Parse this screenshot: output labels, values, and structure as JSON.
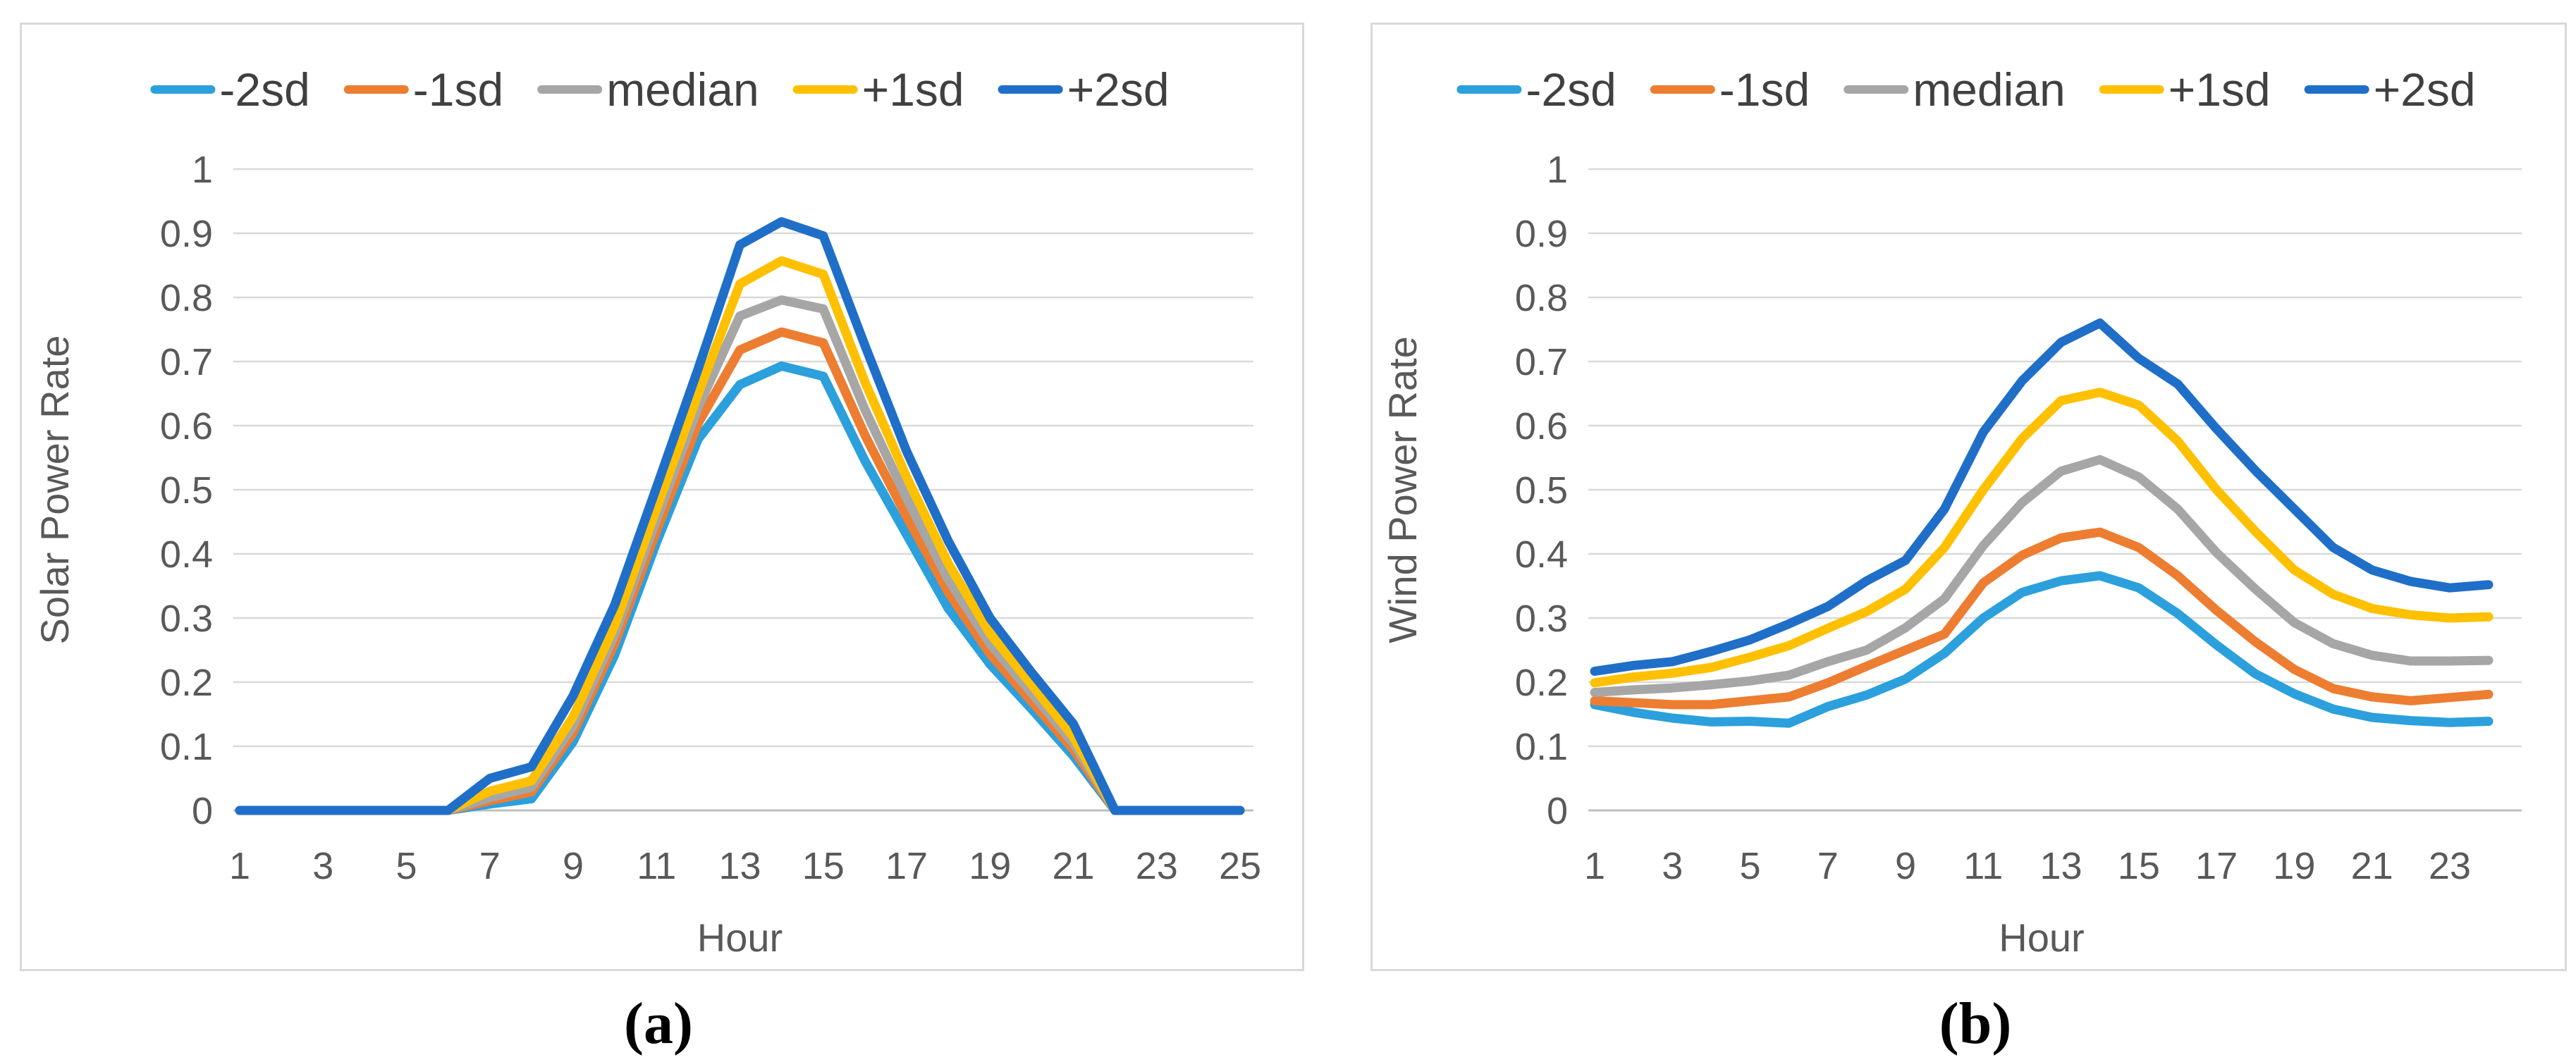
{
  "captions": [
    "(a)",
    "(b)"
  ],
  "style": {
    "grid_color": "#D9D9D9",
    "axis_line_color": "#BFBFBF",
    "tick_text_color": "#595959",
    "axis_title_color": "#595959",
    "legend_text_color": "#404040",
    "panel_border_color": "#D9D9D9",
    "background": "#FFFFFF"
  },
  "chart_data": [
    {
      "type": "line",
      "title": "",
      "xlabel": "Hour",
      "ylabel": "Solar Power Rate",
      "ylim": [
        0,
        1
      ],
      "y_tick_step": 0.1,
      "grid": true,
      "legend_position": "top",
      "y_tick_labels": [
        "0",
        "0.1",
        "0.2",
        "0.3",
        "0.4",
        "0.5",
        "0.6",
        "0.7",
        "0.8",
        "0.9",
        "1"
      ],
      "x": [
        1,
        2,
        3,
        4,
        5,
        6,
        7,
        8,
        9,
        10,
        11,
        12,
        13,
        14,
        15,
        16,
        17,
        18,
        19,
        20,
        21,
        22,
        23,
        24,
        25
      ],
      "x_tick_labels": [
        1,
        3,
        5,
        7,
        9,
        11,
        13,
        15,
        17,
        19,
        21,
        23,
        25
      ],
      "series": [
        {
          "name": "-2sd",
          "color": "#2BA0DC",
          "values": [
            0,
            0,
            0,
            0,
            0,
            0,
            0.01,
            0.018,
            0.107,
            0.243,
            0.418,
            0.579,
            0.664,
            0.693,
            0.677,
            0.545,
            0.43,
            0.315,
            0.228,
            0.158,
            0.085,
            0,
            0,
            0,
            0
          ]
        },
        {
          "name": "-1sd",
          "color": "#ED7D31",
          "values": [
            0,
            0,
            0,
            0,
            0,
            0,
            0.015,
            0.029,
            0.121,
            0.261,
            0.436,
            0.604,
            0.718,
            0.746,
            0.729,
            0.585,
            0.458,
            0.34,
            0.244,
            0.17,
            0.095,
            0,
            0,
            0,
            0
          ]
        },
        {
          "name": "median",
          "color": "#A6A6A6",
          "values": [
            0,
            0,
            0,
            0,
            0,
            0,
            0.02,
            0.036,
            0.132,
            0.275,
            0.454,
            0.629,
            0.771,
            0.796,
            0.782,
            0.625,
            0.487,
            0.36,
            0.26,
            0.183,
            0.105,
            0,
            0,
            0,
            0
          ]
        },
        {
          "name": "+1sd",
          "color": "#FFC000",
          "values": [
            0,
            0,
            0,
            0,
            0,
            0,
            0.03,
            0.046,
            0.146,
            0.289,
            0.471,
            0.65,
            0.821,
            0.857,
            0.836,
            0.668,
            0.52,
            0.385,
            0.276,
            0.196,
            0.115,
            0,
            0,
            0,
            0
          ]
        },
        {
          "name": "+2sd",
          "color": "#1F6FC8",
          "values": [
            0,
            0,
            0,
            0,
            0,
            0,
            0.05,
            0.068,
            0.179,
            0.321,
            0.504,
            0.689,
            0.882,
            0.918,
            0.896,
            0.725,
            0.56,
            0.42,
            0.3,
            0.215,
            0.135,
            0,
            0,
            0,
            0
          ]
        }
      ]
    },
    {
      "type": "line",
      "title": "",
      "xlabel": "Hour",
      "ylabel": "Wind Power Rate",
      "ylim": [
        0,
        1
      ],
      "y_tick_step": 0.1,
      "grid": true,
      "legend_position": "top",
      "y_tick_labels": [
        "0",
        "0.1",
        "0.2",
        "0.3",
        "0.4",
        "0.5",
        "0.6",
        "0.7",
        "0.8",
        "0.9",
        "1"
      ],
      "x": [
        1,
        2,
        3,
        4,
        5,
        6,
        7,
        8,
        9,
        10,
        11,
        12,
        13,
        14,
        15,
        16,
        17,
        18,
        19,
        20,
        21,
        22,
        23,
        24
      ],
      "x_tick_labels": [
        1,
        3,
        5,
        7,
        9,
        11,
        13,
        15,
        17,
        19,
        21,
        23
      ],
      "series": [
        {
          "name": "-2sd",
          "color": "#2BA0DC",
          "values": [
            0.165,
            0.153,
            0.144,
            0.138,
            0.139,
            0.136,
            0.162,
            0.18,
            0.205,
            0.245,
            0.3,
            0.34,
            0.358,
            0.366,
            0.347,
            0.307,
            0.258,
            0.213,
            0.182,
            0.158,
            0.145,
            0.14,
            0.137,
            0.139
          ]
        },
        {
          "name": "-1sd",
          "color": "#ED7D31",
          "values": [
            0.171,
            0.168,
            0.165,
            0.165,
            0.171,
            0.177,
            0.199,
            0.225,
            0.25,
            0.275,
            0.355,
            0.398,
            0.425,
            0.434,
            0.41,
            0.366,
            0.312,
            0.263,
            0.22,
            0.19,
            0.177,
            0.171,
            0.176,
            0.181
          ]
        },
        {
          "name": "median",
          "color": "#A6A6A6",
          "values": [
            0.184,
            0.188,
            0.191,
            0.196,
            0.202,
            0.211,
            0.232,
            0.25,
            0.285,
            0.33,
            0.413,
            0.48,
            0.529,
            0.547,
            0.52,
            0.47,
            0.402,
            0.345,
            0.293,
            0.26,
            0.242,
            0.233,
            0.233,
            0.234
          ]
        },
        {
          "name": "+1sd",
          "color": "#FFC000",
          "values": [
            0.199,
            0.208,
            0.214,
            0.223,
            0.239,
            0.257,
            0.284,
            0.31,
            0.345,
            0.41,
            0.5,
            0.58,
            0.639,
            0.652,
            0.632,
            0.576,
            0.5,
            0.435,
            0.375,
            0.337,
            0.315,
            0.305,
            0.3,
            0.302
          ]
        },
        {
          "name": "+2sd",
          "color": "#1F6FC8",
          "values": [
            0.217,
            0.226,
            0.232,
            0.248,
            0.266,
            0.291,
            0.318,
            0.358,
            0.39,
            0.47,
            0.59,
            0.67,
            0.73,
            0.76,
            0.705,
            0.665,
            0.595,
            0.53,
            0.47,
            0.41,
            0.375,
            0.357,
            0.347,
            0.352
          ]
        }
      ]
    }
  ]
}
